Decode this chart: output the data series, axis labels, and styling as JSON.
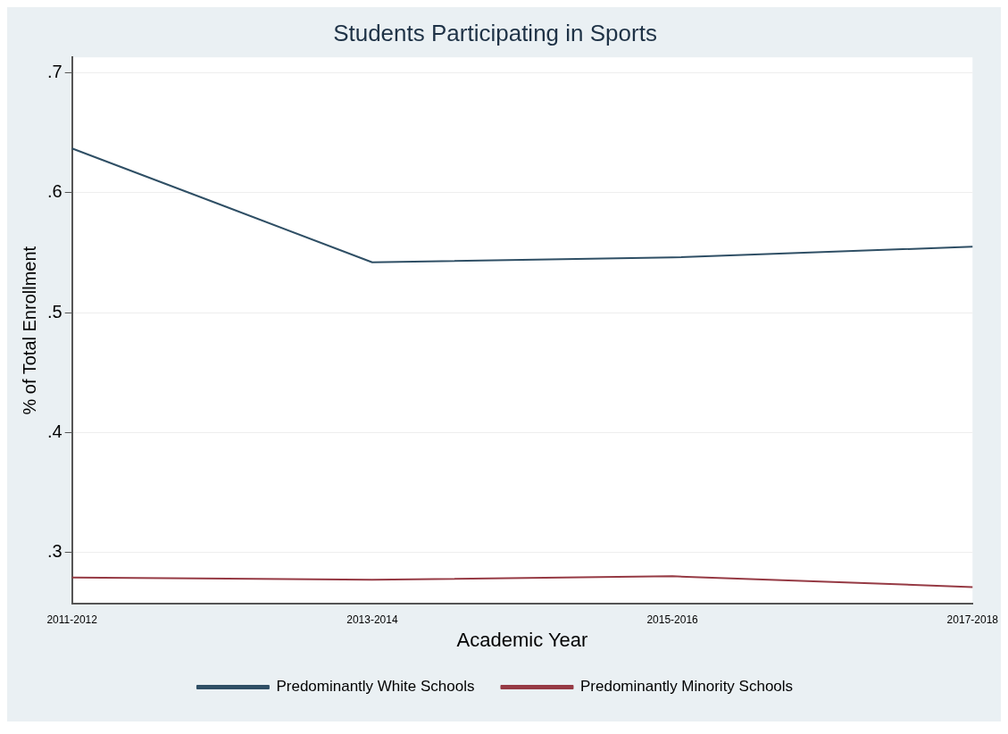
{
  "chart_data": {
    "type": "line",
    "title": "Students Participating in Sports",
    "xlabel": "Academic Year",
    "ylabel": "% of Total Enrollment",
    "categories": [
      "2011-2012",
      "2013-2014",
      "2015-2016",
      "2017-2018"
    ],
    "series": [
      {
        "name": "Predominantly White Schools",
        "color": "#2f4f65",
        "values": [
          0.637,
          0.542,
          0.546,
          0.555
        ]
      },
      {
        "name": "Predominantly Minority Schools",
        "color": "#963a44",
        "values": [
          0.279,
          0.277,
          0.28,
          0.271
        ]
      }
    ],
    "ylim": [
      0.257,
      0.713
    ],
    "yticks": [
      {
        "value": 0.3,
        "label": ".3"
      },
      {
        "value": 0.4,
        "label": ".4"
      },
      {
        "value": 0.5,
        "label": ".5"
      },
      {
        "value": 0.6,
        "label": ".6"
      },
      {
        "value": 0.7,
        "label": ".7"
      }
    ],
    "grid": "y",
    "legend": "bottom",
    "marker": "none",
    "line_style": "solid"
  }
}
